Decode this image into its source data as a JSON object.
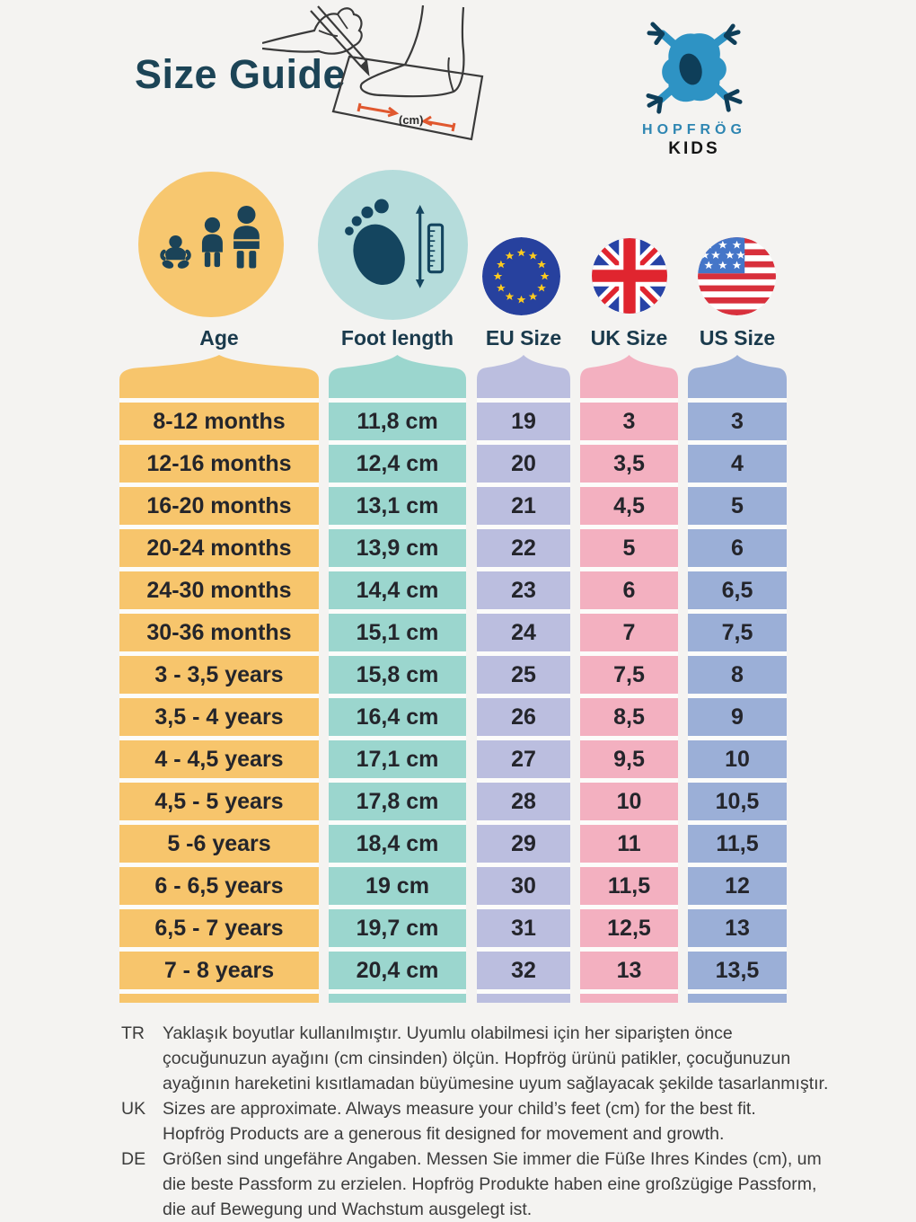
{
  "page": {
    "background": "#F4F3F1"
  },
  "header": {
    "title": "Size Guide",
    "title_color": "#1C4456",
    "illustration": {
      "icon": "foot-measuring-illustration-icon",
      "label": "(cm)",
      "arrow_color": "#E0582F"
    },
    "logo": {
      "icon": "frog-icon",
      "brand": "HOPFRÖG",
      "sub": "KIDS",
      "brand_color": "#2E86B2",
      "frog_color": "#2E93C4",
      "frog_dark_color": "#0E3E59"
    }
  },
  "table": {
    "columns": [
      {
        "label": "Age",
        "icon": "family-icon",
        "circle_color": "#F7C76F",
        "color": "#F7C56C"
      },
      {
        "label": "Foot length",
        "icon": "foot-ruler-icon",
        "circle_color": "#B5DCDB",
        "color": "#9BD6CE"
      },
      {
        "label": "EU Size",
        "icon": "eu-flag-icon",
        "circle_color": "#27419E",
        "color": "#BBBEDF"
      },
      {
        "label": "UK Size",
        "icon": "uk-flag-icon",
        "circle_color": "#2743A6",
        "color": "#F3B0C0"
      },
      {
        "label": "US Size",
        "icon": "us-flag-icon",
        "circle_color": "#FFFFFF",
        "color": "#9BAFD7"
      }
    ],
    "rows": [
      [
        "8-12 months",
        "11,8 cm",
        "19",
        "3",
        "3"
      ],
      [
        "12-16 months",
        "12,4 cm",
        "20",
        "3,5",
        "4"
      ],
      [
        "16-20 months",
        "13,1 cm",
        "21",
        "4,5",
        "5"
      ],
      [
        "20-24 months",
        "13,9 cm",
        "22",
        "5",
        "6"
      ],
      [
        "24-30 months",
        "14,4 cm",
        "23",
        "6",
        "6,5"
      ],
      [
        "30-36 months",
        "15,1 cm",
        "24",
        "7",
        "7,5"
      ],
      [
        "3 - 3,5 years",
        "15,8 cm",
        "25",
        "7,5",
        "8"
      ],
      [
        "3,5 - 4 years",
        "16,4 cm",
        "26",
        "8,5",
        "9"
      ],
      [
        "4 - 4,5 years",
        "17,1 cm",
        "27",
        "9,5",
        "10"
      ],
      [
        "4,5 - 5 years",
        "17,8 cm",
        "28",
        "10",
        "10,5"
      ],
      [
        "5 -6 years",
        "18,4 cm",
        "29",
        "11",
        "11,5"
      ],
      [
        "6 - 6,5 years",
        "19 cm",
        "30",
        "11,5",
        "12"
      ],
      [
        "6,5 - 7 years",
        "19,7 cm",
        "31",
        "12,5",
        "13"
      ],
      [
        "7 - 8 years",
        "20,4 cm",
        "32",
        "13",
        "13,5"
      ]
    ]
  },
  "footnotes": [
    {
      "lang": "TR",
      "lines": [
        "Yaklaşık boyutlar kullanılmıştır. Uyumlu olabilmesi için her siparişten önce",
        "çocuğunuzun ayağını (cm cinsinden) ölçün. Hopfrög ürünü patikler, çocuğunuzun",
        "ayağının hareketini kısıtlamadan büyümesine uyum sağlayacak şekilde tasarlanmıştır."
      ]
    },
    {
      "lang": "UK",
      "lines": [
        "Sizes are approximate. Always measure your child’s feet (cm) for the best fit.",
        "Hopfrög Products are a generous fit designed for movement and growth."
      ]
    },
    {
      "lang": "DE",
      "lines": [
        "Größen sind ungefähre Angaben. Messen Sie immer die Füße Ihres Kindes (cm), um",
        "die beste Passform zu erzielen. Hopfrög Produkte haben eine großzügige Passform,",
        "die auf Bewegung und Wachstum ausgelegt ist."
      ]
    }
  ]
}
